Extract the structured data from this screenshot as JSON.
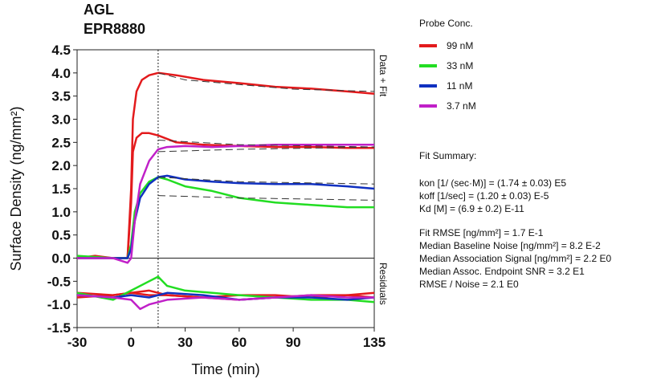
{
  "chart_data": {
    "type": "line",
    "title": "AGL",
    "subtitle": "EPR8880",
    "xlabel": "Time (min)",
    "ylabel": "Surface Density (ng/mm²)",
    "top_panel_label": "Data + Fit",
    "bottom_panel_label": "Residuals",
    "xlim": [
      -30,
      135
    ],
    "ylim": [
      -1.5,
      4.5
    ],
    "x_ticks": [
      "-30",
      "0",
      "30",
      "60",
      "90",
      "135"
    ],
    "x_tick_values": [
      -30,
      0,
      30,
      60,
      90,
      135
    ],
    "y_ticks": [
      "4.5",
      "4.0",
      "3.5",
      "3.0",
      "2.5",
      "2.0",
      "1.5",
      "1.0",
      "0.5",
      "0.0",
      "-0.5",
      "-1.0",
      "-1.5"
    ],
    "y_tick_values": [
      4.5,
      4.0,
      3.5,
      3.0,
      2.5,
      2.0,
      1.5,
      1.0,
      0.5,
      0.0,
      -0.5,
      -1.0,
      -1.5
    ],
    "panel_split": 0,
    "association_end_x": 15,
    "legend_placement": "right",
    "legend_title": "Probe Conc.",
    "series": [
      {
        "name": "99 nM",
        "color": "#e31a1c",
        "x": [
          -30,
          -20,
          -10,
          -2,
          0,
          1,
          3,
          6,
          10,
          15,
          25,
          40,
          60,
          80,
          100,
          120,
          135
        ],
        "y": [
          0.0,
          0.05,
          0.0,
          0.0,
          1.5,
          3.0,
          3.6,
          3.85,
          3.95,
          4.0,
          3.95,
          3.85,
          3.78,
          3.7,
          3.66,
          3.6,
          3.55
        ],
        "fit_x": [
          15,
          30,
          60,
          90,
          135
        ],
        "fit_y": [
          4.0,
          3.85,
          3.75,
          3.65,
          3.6
        ],
        "res_x": [
          -30,
          -10,
          0,
          10,
          20,
          40,
          60,
          80,
          100,
          120,
          135
        ],
        "res_y": [
          -0.75,
          -0.8,
          -0.75,
          -0.8,
          -0.8,
          -0.85,
          -0.8,
          -0.8,
          -0.85,
          -0.8,
          -0.75
        ]
      },
      {
        "name": "99 nM",
        "color": "#e31a1c",
        "x": [
          -30,
          -10,
          -2,
          0,
          1,
          3,
          6,
          10,
          15,
          25,
          40,
          60,
          80,
          100,
          120,
          135
        ],
        "y": [
          0.0,
          0.0,
          0.0,
          1.2,
          2.3,
          2.6,
          2.7,
          2.7,
          2.65,
          2.5,
          2.45,
          2.42,
          2.4,
          2.4,
          2.38,
          2.38
        ],
        "fit_x": [
          15,
          60,
          135
        ],
        "fit_y": [
          2.55,
          2.45,
          2.4
        ],
        "res_x": [
          -30,
          -10,
          0,
          10,
          20,
          40,
          60,
          80,
          100,
          120,
          135
        ],
        "res_y": [
          -0.85,
          -0.8,
          -0.75,
          -0.7,
          -0.8,
          -0.85,
          -0.9,
          -0.85,
          -0.8,
          -0.8,
          -0.85
        ]
      },
      {
        "name": "33 nM",
        "color": "#22dd22",
        "x": [
          -30,
          -10,
          -2,
          0,
          2,
          5,
          10,
          15,
          20,
          30,
          45,
          60,
          80,
          100,
          120,
          135
        ],
        "y": [
          0.05,
          0.0,
          0.0,
          0.3,
          1.0,
          1.4,
          1.65,
          1.75,
          1.7,
          1.55,
          1.45,
          1.3,
          1.2,
          1.15,
          1.1,
          1.1
        ],
        "fit_x": [
          15,
          60,
          135
        ],
        "fit_y": [
          1.35,
          1.3,
          1.25
        ],
        "res_x": [
          -30,
          -10,
          0,
          10,
          15,
          20,
          30,
          45,
          60,
          80,
          100,
          120,
          135
        ],
        "res_y": [
          -0.75,
          -0.9,
          -0.7,
          -0.5,
          -0.4,
          -0.6,
          -0.7,
          -0.75,
          -0.8,
          -0.85,
          -0.9,
          -0.9,
          -0.95
        ]
      },
      {
        "name": "11 nM",
        "color": "#1030c0",
        "x": [
          -30,
          -10,
          -2,
          0,
          2,
          5,
          10,
          15,
          20,
          30,
          45,
          60,
          80,
          100,
          120,
          135
        ],
        "y": [
          0.0,
          0.0,
          0.0,
          0.2,
          0.8,
          1.3,
          1.6,
          1.75,
          1.78,
          1.7,
          1.65,
          1.62,
          1.6,
          1.6,
          1.55,
          1.5
        ],
        "fit_x": [
          15,
          60,
          135
        ],
        "fit_y": [
          1.75,
          1.65,
          1.6
        ],
        "res_x": [
          -30,
          -10,
          0,
          10,
          20,
          40,
          60,
          80,
          100,
          120,
          135
        ],
        "res_y": [
          -0.8,
          -0.85,
          -0.8,
          -0.85,
          -0.75,
          -0.8,
          -0.9,
          -0.85,
          -0.85,
          -0.9,
          -0.85
        ]
      },
      {
        "name": "3.7 nM",
        "color": "#c020c8",
        "x": [
          -30,
          -10,
          -2,
          0,
          2,
          5,
          10,
          15,
          20,
          30,
          45,
          60,
          80,
          100,
          120,
          135
        ],
        "y": [
          0.0,
          0.0,
          -0.1,
          0.0,
          0.8,
          1.6,
          2.1,
          2.35,
          2.4,
          2.42,
          2.4,
          2.42,
          2.45,
          2.45,
          2.45,
          2.45
        ],
        "fit_x": [
          15,
          60,
          135
        ],
        "fit_y": [
          2.3,
          2.35,
          2.4
        ],
        "res_x": [
          -30,
          -10,
          0,
          5,
          10,
          15,
          20,
          40,
          60,
          80,
          100,
          120,
          135
        ],
        "res_y": [
          -0.8,
          -0.85,
          -0.9,
          -1.1,
          -1.0,
          -0.95,
          -0.9,
          -0.85,
          -0.9,
          -0.85,
          -0.8,
          -0.85,
          -0.85
        ]
      }
    ]
  },
  "legend": {
    "title": "Probe Conc.",
    "items": [
      {
        "label": "99 nM",
        "color": "#e31a1c"
      },
      {
        "label": "33 nM",
        "color": "#22dd22"
      },
      {
        "label": "11 nM",
        "color": "#1030c0"
      },
      {
        "label": "3.7 nM",
        "color": "#c020c8"
      }
    ]
  },
  "fit_summary": {
    "heading": "Fit Summary:",
    "kon": "kon  [1/ (sec·M)]  =   (1.74 ± 0.03) E5",
    "koff": "koff  [1/sec]  =   (1.20 ± 0.03) E-5",
    "kd": "Kd  [M]  =   (6.9 ± 0.2) E-11",
    "rmse": "Fit RMSE [ng/mm²]  =   1.7 E-1",
    "baseline_noise": "Median Baseline Noise [ng/mm²]  =   8.2 E-2",
    "assoc_signal": "Median Association Signal [ng/mm²]  =   2.2 E0",
    "endpoint_snr": "Median Assoc. Endpoint SNR  =   3.2 E1",
    "rmse_noise": "RMSE / Noise  =   2.1 E0"
  }
}
